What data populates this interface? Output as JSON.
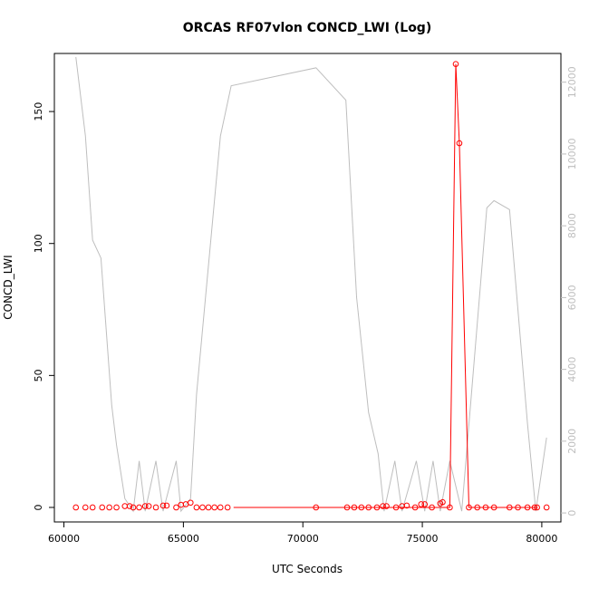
{
  "chart_data": {
    "type": "line",
    "title": "ORCAS RF07vlon CONCD_LWI (Log)",
    "xlabel": "UTC Seconds",
    "ylabel": "CONCD_LWI",
    "xlim": [
      59600,
      80800
    ],
    "ylim": [
      -5.5,
      172
    ],
    "y2lim": [
      -250,
      12800
    ],
    "x_ticks": [
      60000,
      65000,
      70000,
      75000,
      80000
    ],
    "y_ticks": [
      0,
      50,
      100,
      150
    ],
    "y2_ticks": [
      0,
      2000,
      4000,
      6000,
      8000,
      10000,
      12000
    ],
    "x_tick_labels": [
      "60000",
      "65000",
      "70000",
      "75000",
      "80000"
    ],
    "y_tick_labels": [
      "0",
      "50",
      "100",
      "150"
    ],
    "y2_tick_labels": [
      "0",
      "2000",
      "4000",
      "6000",
      "8000",
      "10000",
      "12000"
    ],
    "grid": false,
    "series": [
      {
        "role": "primary",
        "color": "#ff0000",
        "marker": "open-circle",
        "points": [
          [
            60500,
            0
          ],
          [
            60900,
            0
          ],
          [
            61200,
            0
          ],
          [
            61600,
            0
          ],
          [
            61900,
            0
          ],
          [
            62200,
            0
          ],
          [
            62550,
            0.5
          ],
          [
            62750,
            0.5
          ],
          [
            62900,
            0
          ],
          [
            63150,
            0
          ],
          [
            63400,
            0.5
          ],
          [
            63550,
            0.5
          ],
          [
            63850,
            0
          ],
          [
            64150,
            0.7
          ],
          [
            64300,
            0.7
          ],
          [
            64700,
            0
          ],
          [
            64900,
            1
          ],
          [
            65100,
            1.2
          ],
          [
            65300,
            1.8
          ],
          [
            65550,
            0
          ],
          [
            65800,
            0
          ],
          [
            66050,
            0
          ],
          [
            66300,
            0
          ],
          [
            66550,
            0
          ],
          [
            66850,
            0
          ],
          [
            70550,
            0
          ],
          [
            71850,
            0
          ],
          [
            72150,
            0
          ],
          [
            72450,
            0
          ],
          [
            72750,
            0
          ],
          [
            73100,
            0
          ],
          [
            73350,
            0.5
          ],
          [
            73500,
            0.5
          ],
          [
            73900,
            0
          ],
          [
            74150,
            0.5
          ],
          [
            74350,
            0.7
          ],
          [
            74700,
            0
          ],
          [
            74950,
            1.2
          ],
          [
            75100,
            1.2
          ],
          [
            75400,
            0
          ],
          [
            75750,
            1.5
          ],
          [
            75850,
            2
          ],
          [
            76150,
            0
          ],
          [
            76400,
            168
          ],
          [
            76550,
            138
          ],
          [
            76950,
            0
          ],
          [
            77300,
            0
          ],
          [
            77650,
            0
          ],
          [
            78000,
            0
          ],
          [
            78650,
            0
          ],
          [
            79000,
            0
          ],
          [
            79400,
            0
          ],
          [
            79700,
            0
          ],
          [
            79800,
            0
          ],
          [
            80200,
            0
          ]
        ],
        "line_points": [
          [
            67100,
            0
          ],
          [
            70500,
            0
          ],
          [
            70600,
            0
          ],
          [
            71800,
            0
          ],
          [
            76150,
            0
          ],
          [
            76400,
            168
          ],
          [
            76550,
            138
          ],
          [
            76950,
            0
          ],
          [
            79700,
            0
          ],
          [
            79800,
            0
          ]
        ]
      },
      {
        "role": "secondary",
        "color": "#bebebe",
        "axis": "right",
        "points": [
          [
            60500,
            12700
          ],
          [
            60900,
            10500
          ],
          [
            61200,
            7600
          ],
          [
            61550,
            7100
          ],
          [
            62000,
            3000
          ],
          [
            62200,
            1900
          ],
          [
            62550,
            400
          ],
          [
            62900,
            50
          ],
          [
            63150,
            1450
          ],
          [
            63400,
            50
          ],
          [
            63850,
            1450
          ],
          [
            64150,
            50
          ],
          [
            64700,
            1450
          ],
          [
            64900,
            50
          ],
          [
            65300,
            400
          ],
          [
            65550,
            3300
          ],
          [
            66550,
            10500
          ],
          [
            67000,
            11900
          ],
          [
            70550,
            12400
          ],
          [
            71800,
            11500
          ],
          [
            72250,
            6000
          ],
          [
            72750,
            2800
          ],
          [
            73150,
            1650
          ],
          [
            73400,
            50
          ],
          [
            73850,
            1450
          ],
          [
            74150,
            50
          ],
          [
            74750,
            1450
          ],
          [
            75100,
            50
          ],
          [
            75450,
            1450
          ],
          [
            75750,
            50
          ],
          [
            76150,
            1450
          ],
          [
            76650,
            50
          ],
          [
            77700,
            8500
          ],
          [
            78000,
            8700
          ],
          [
            78650,
            8450
          ],
          [
            79400,
            2500
          ],
          [
            79750,
            50
          ],
          [
            80200,
            2100
          ]
        ]
      }
    ]
  }
}
